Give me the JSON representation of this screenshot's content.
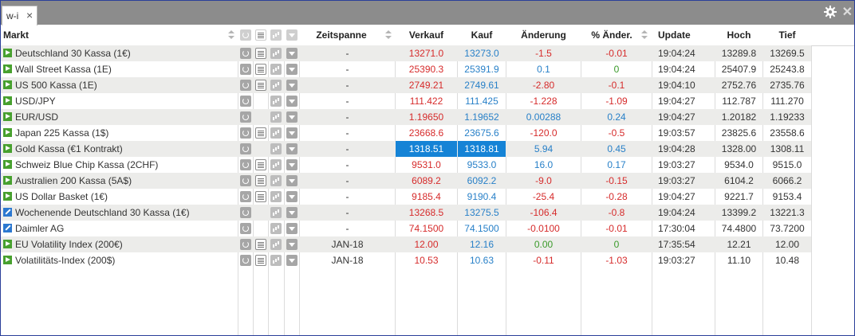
{
  "window": {
    "tab_title": "w-i",
    "tab_close": "×",
    "close_glyph": "✕"
  },
  "headers": {
    "markt": "Markt",
    "zeitspanne": "Zeitspanne",
    "verkauf": "Verkauf",
    "kauf": "Kauf",
    "aenderung": "Änderung",
    "pct_aenderung": "% Änder.",
    "update": "Update",
    "hoch": "Hoch",
    "tief": "Tief"
  },
  "colors": {
    "up": "#2880c8",
    "down": "#d62b2b",
    "neutral": "#3a9a2a",
    "highlight": "#1583d6"
  },
  "rows": [
    {
      "icon": "play",
      "name": "Deutschland 30 Kassa (1€)",
      "list": true,
      "zeit": "-",
      "verkauf": "13271.0",
      "verkauf_c": "red",
      "kauf": "13273.0",
      "kauf_c": "blue",
      "aend": "-1.5",
      "aend_c": "red",
      "pct": "-0.01",
      "pct_c": "red",
      "update": "19:04:24",
      "hoch": "13289.8",
      "tief": "13269.5"
    },
    {
      "icon": "play",
      "name": "Wall Street Kassa (1E)",
      "list": true,
      "zeit": "-",
      "verkauf": "25390.3",
      "verkauf_c": "red",
      "kauf": "25391.9",
      "kauf_c": "blue",
      "aend": "0.1",
      "aend_c": "blue",
      "pct": "0",
      "pct_c": "green",
      "update": "19:04:24",
      "hoch": "25407.9",
      "tief": "25243.8"
    },
    {
      "icon": "play",
      "name": "US 500 Kassa (1E)",
      "list": true,
      "zeit": "-",
      "verkauf": "2749.21",
      "verkauf_c": "red",
      "kauf": "2749.61",
      "kauf_c": "blue",
      "aend": "-2.80",
      "aend_c": "red",
      "pct": "-0.1",
      "pct_c": "red",
      "update": "19:04:10",
      "hoch": "2752.76",
      "tief": "2735.76"
    },
    {
      "icon": "play",
      "name": "USD/JPY",
      "list": false,
      "zeit": "-",
      "verkauf": "111.422",
      "verkauf_c": "red",
      "kauf": "111.425",
      "kauf_c": "blue",
      "aend": "-1.228",
      "aend_c": "red",
      "pct": "-1.09",
      "pct_c": "red",
      "update": "19:04:27",
      "hoch": "112.787",
      "tief": "111.270"
    },
    {
      "icon": "play",
      "name": "EUR/USD",
      "list": false,
      "zeit": "-",
      "verkauf": "1.19650",
      "verkauf_c": "red",
      "kauf": "1.19652",
      "kauf_c": "blue",
      "aend": "0.00288",
      "aend_c": "blue",
      "pct": "0.24",
      "pct_c": "blue",
      "update": "19:04:27",
      "hoch": "1.20182",
      "tief": "1.19233"
    },
    {
      "icon": "play",
      "name": "Japan 225 Kassa (1$)",
      "list": true,
      "zeit": "-",
      "verkauf": "23668.6",
      "verkauf_c": "red",
      "kauf": "23675.6",
      "kauf_c": "blue",
      "aend": "-120.0",
      "aend_c": "red",
      "pct": "-0.5",
      "pct_c": "red",
      "update": "19:03:57",
      "hoch": "23825.6",
      "tief": "23558.6"
    },
    {
      "icon": "play",
      "name": "Gold Kassa (€1 Kontrakt)",
      "list": false,
      "zeit": "-",
      "verkauf": "1318.51",
      "verkauf_c": "hl",
      "kauf": "1318.81",
      "kauf_c": "hl",
      "aend": "5.94",
      "aend_c": "blue",
      "pct": "0.45",
      "pct_c": "blue",
      "update": "19:04:28",
      "hoch": "1328.00",
      "tief": "1308.11"
    },
    {
      "icon": "play",
      "name": "Schweiz Blue Chip Kassa (2CHF)",
      "list": true,
      "zeit": "-",
      "verkauf": "9531.0",
      "verkauf_c": "red",
      "kauf": "9533.0",
      "kauf_c": "blue",
      "aend": "16.0",
      "aend_c": "blue",
      "pct": "0.17",
      "pct_c": "blue",
      "update": "19:03:27",
      "hoch": "9534.0",
      "tief": "9515.0"
    },
    {
      "icon": "play",
      "name": "Australien 200 Kassa (5A$)",
      "list": true,
      "zeit": "-",
      "verkauf": "6089.2",
      "verkauf_c": "red",
      "kauf": "6092.2",
      "kauf_c": "blue",
      "aend": "-9.0",
      "aend_c": "red",
      "pct": "-0.15",
      "pct_c": "red",
      "update": "19:03:27",
      "hoch": "6104.2",
      "tief": "6066.2"
    },
    {
      "icon": "play",
      "name": "US Dollar Basket (1€)",
      "list": true,
      "zeit": "-",
      "verkauf": "9185.4",
      "verkauf_c": "red",
      "kauf": "9190.4",
      "kauf_c": "blue",
      "aend": "-25.4",
      "aend_c": "red",
      "pct": "-0.28",
      "pct_c": "red",
      "update": "19:04:27",
      "hoch": "9221.7",
      "tief": "9153.4"
    },
    {
      "icon": "pen",
      "name": "Wochenende Deutschland 30 Kassa (1€)",
      "list": false,
      "zeit": "-",
      "verkauf": "13268.5",
      "verkauf_c": "red",
      "kauf": "13275.5",
      "kauf_c": "blue",
      "aend": "-106.4",
      "aend_c": "red",
      "pct": "-0.8",
      "pct_c": "red",
      "update": "19:04:24",
      "hoch": "13399.2",
      "tief": "13221.3"
    },
    {
      "icon": "pen",
      "name": "Daimler AG",
      "list": false,
      "zeit": "-",
      "verkauf": "74.1500",
      "verkauf_c": "red",
      "kauf": "74.1500",
      "kauf_c": "blue",
      "aend": "-0.0100",
      "aend_c": "red",
      "pct": "-0.01",
      "pct_c": "red",
      "update": "17:30:04",
      "hoch": "74.4800",
      "tief": "73.7200"
    },
    {
      "icon": "play",
      "name": "EU Volatility Index (200€)",
      "list": true,
      "zeit": "JAN-18",
      "verkauf": "12.00",
      "verkauf_c": "red",
      "kauf": "12.16",
      "kauf_c": "blue",
      "aend": "0.00",
      "aend_c": "green",
      "pct": "0",
      "pct_c": "green",
      "update": "17:35:54",
      "hoch": "12.21",
      "tief": "12.00"
    },
    {
      "icon": "play",
      "name": "Volatilitäts-Index (200$)",
      "list": true,
      "zeit": "JAN-18",
      "verkauf": "10.53",
      "verkauf_c": "red",
      "kauf": "10.63",
      "kauf_c": "blue",
      "aend": "-0.11",
      "aend_c": "red",
      "pct": "-1.03",
      "pct_c": "red",
      "update": "19:03:27",
      "hoch": "11.10",
      "tief": "10.48"
    }
  ]
}
